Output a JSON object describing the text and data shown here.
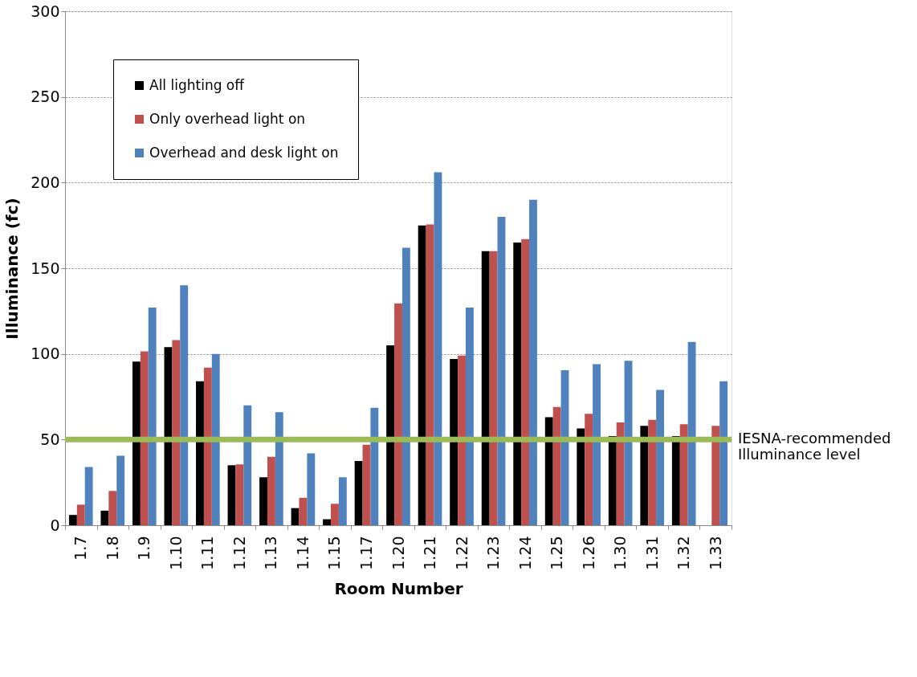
{
  "chart_data": {
    "type": "bar",
    "xlabel": "Room Number",
    "ylabel": "Illuminance (fc)",
    "categories": [
      "1.7",
      "1.8",
      "1.9",
      "1.10",
      "1.11",
      "1.12",
      "1.13",
      "1.14",
      "1.15",
      "1.17",
      "1.20",
      "1.21",
      "1.22",
      "1.23",
      "1.24",
      "1.25",
      "1.26",
      "1.30",
      "1.31",
      "1.32",
      "1.33"
    ],
    "series": [
      {
        "name": "All lighting off",
        "color": "#000000",
        "values": [
          6,
          8.5,
          95.5,
          104,
          84,
          35,
          28,
          10,
          3.5,
          37.5,
          105,
          175,
          97,
          160,
          165,
          63,
          56.5,
          52,
          58,
          52,
          null
        ]
      },
      {
        "name": "Only overhead light on",
        "color": "#c0504d",
        "values": [
          12,
          20,
          101.5,
          108,
          92,
          35.5,
          40,
          16,
          12.5,
          47,
          129.5,
          175.5,
          99,
          160,
          167,
          69,
          65,
          60,
          61.5,
          59,
          58
        ]
      },
      {
        "name": "Overhead and desk light on",
        "color": "#4f81bd",
        "values": [
          34,
          40.5,
          127,
          140,
          100,
          70,
          66,
          42,
          28,
          68.5,
          162,
          206,
          127,
          180,
          190,
          90.5,
          94,
          96,
          79,
          107,
          84
        ]
      }
    ],
    "ylim": [
      0,
      300
    ],
    "yticks": [
      0,
      50,
      100,
      150,
      200,
      250,
      300
    ],
    "grid": "y",
    "legend": "top left",
    "ref_lines": [
      {
        "axis": "y",
        "value": 50,
        "label": "IESNA-recommended\nIlluminance level",
        "color": "#9bbb59"
      }
    ]
  }
}
